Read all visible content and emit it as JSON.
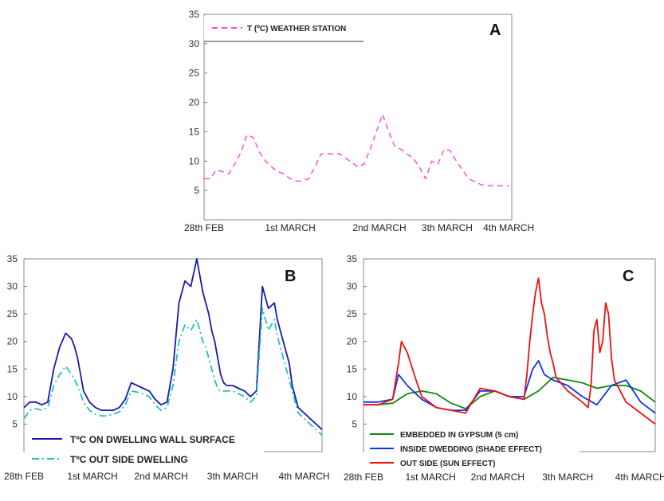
{
  "chart_data": [
    {
      "panel": "A",
      "type": "line",
      "x_ticks": [
        "28th FEB",
        "1st MARCH",
        "2nd MARCH",
        "3th MARCH",
        "4th MARCH"
      ],
      "x_range": [
        0,
        100
      ],
      "ylim": [
        0,
        35
      ],
      "y_ticks": [
        5,
        10,
        15,
        20,
        25,
        30,
        35
      ],
      "legend_placement": "top-left",
      "series": [
        {
          "name": "T (ºC) WEATHER STATION",
          "color": "#ff44dd",
          "style": "dashed",
          "x": [
            0,
            2,
            4,
            6,
            8,
            10,
            12,
            14,
            16,
            18,
            20,
            22,
            24,
            26,
            28,
            30,
            32,
            34,
            36,
            38,
            40,
            42,
            44,
            46,
            48,
            50,
            52,
            54,
            56,
            58,
            60,
            62,
            64,
            66,
            68,
            70,
            72,
            74,
            76,
            78,
            80,
            82,
            84,
            86,
            88,
            90,
            92,
            94,
            96,
            98,
            99
          ],
          "y": [
            7,
            7,
            8.5,
            8.2,
            7.8,
            9.5,
            11.5,
            14.5,
            14,
            11.5,
            10,
            9,
            8.2,
            7.8,
            7,
            6.6,
            6.6,
            7,
            9,
            11.2,
            11.3,
            11.2,
            11.3,
            10.5,
            9.8,
            9,
            9.5,
            12,
            15,
            18,
            15,
            12.5,
            12,
            11.2,
            10.5,
            9,
            7,
            10,
            9.5,
            12,
            11.8,
            10,
            8.5,
            7,
            6.5,
            6,
            5.8,
            5.8,
            5.8,
            5.8,
            5.8
          ]
        }
      ]
    },
    {
      "panel": "B",
      "type": "line",
      "x_ticks": [
        "28th FEB",
        "1st MARCH",
        "2nd MARCH",
        "3th MARCH",
        "4th MARCH"
      ],
      "x_range": [
        0,
        100
      ],
      "ylim": [
        0,
        35
      ],
      "y_ticks": [
        5,
        10,
        15,
        20,
        25,
        30,
        35
      ],
      "legend_placement": "bottom-left",
      "series": [
        {
          "name": "TºC ON DWELLING WALL SURFACE",
          "color": "#1a1aaa",
          "style": "solid",
          "x": [
            0,
            2,
            4,
            6,
            8,
            10,
            12,
            14,
            16,
            17,
            18,
            19,
            20,
            22,
            24,
            26,
            28,
            30,
            32,
            34,
            36,
            38,
            40,
            42,
            44,
            46,
            48,
            50,
            52,
            54,
            56,
            58,
            60,
            61,
            62,
            63,
            64,
            65,
            66,
            67,
            68,
            70,
            72,
            74,
            76,
            78,
            80,
            82,
            84,
            85,
            86,
            87,
            88,
            89,
            90,
            91,
            92,
            94,
            96,
            98,
            100
          ],
          "y": [
            8,
            9,
            9,
            8.5,
            9,
            15,
            19,
            21.5,
            20.5,
            19,
            17,
            14,
            11,
            9,
            8,
            7.5,
            7.5,
            7.5,
            8,
            9.5,
            12.5,
            12,
            11.5,
            11,
            9.5,
            8.5,
            9,
            15,
            27,
            31,
            30,
            35,
            29,
            27,
            25,
            22,
            20,
            17,
            14,
            12.5,
            12,
            12,
            11.5,
            11,
            10,
            11,
            30,
            26,
            27,
            24,
            22,
            20,
            18,
            16,
            12,
            10,
            8,
            7,
            6,
            5,
            4
          ]
        },
        {
          "name": "TºC OUT SIDE DWELLING",
          "color": "#20c0c0",
          "style": "dashdot",
          "x": [
            0,
            2,
            4,
            6,
            8,
            10,
            12,
            14,
            16,
            17,
            18,
            19,
            20,
            22,
            24,
            26,
            28,
            30,
            32,
            34,
            36,
            38,
            40,
            42,
            44,
            46,
            48,
            50,
            52,
            54,
            56,
            58,
            60,
            61,
            62,
            63,
            64,
            65,
            66,
            67,
            68,
            70,
            72,
            74,
            76,
            78,
            80,
            82,
            84,
            85,
            86,
            87,
            88,
            89,
            90,
            91,
            92,
            94,
            96,
            98,
            100
          ],
          "y": [
            6,
            7.5,
            7.8,
            7.5,
            8,
            12,
            14,
            15.5,
            14,
            13,
            12,
            10.5,
            9,
            7.5,
            6.8,
            6.5,
            6.5,
            6.8,
            7.2,
            8.5,
            11,
            10.8,
            10.5,
            10,
            8.5,
            7.5,
            8,
            12,
            20,
            23,
            22,
            24,
            20,
            19,
            17,
            15,
            13,
            11.5,
            11,
            11,
            11,
            11,
            10.5,
            10,
            9,
            10,
            26,
            22,
            24,
            21,
            19,
            17,
            15,
            13,
            11,
            9,
            7,
            6,
            5,
            4,
            3
          ]
        }
      ]
    },
    {
      "panel": "C",
      "type": "line",
      "x_ticks": [
        "28th FEB",
        "1st MARCH",
        "2nd MARCH",
        "3th MARCH",
        "4th MARCH"
      ],
      "x_range": [
        0,
        100
      ],
      "ylim": [
        0,
        35
      ],
      "y_ticks": [
        5,
        10,
        15,
        20,
        25,
        30,
        35
      ],
      "legend_placement": "bottom-left",
      "series": [
        {
          "name": "EMBEDDED IN GYPSUM (5 cm)",
          "color": "#118811",
          "style": "solid",
          "x": [
            0,
            5,
            10,
            15,
            20,
            25,
            30,
            35,
            40,
            45,
            50,
            55,
            60,
            65,
            70,
            75,
            80,
            85,
            90,
            95,
            100
          ],
          "y": [
            8.5,
            8.5,
            8.8,
            10.5,
            11,
            10.5,
            8.8,
            7.8,
            10,
            11,
            10,
            9.5,
            11,
            13.5,
            13,
            12.5,
            11.5,
            12,
            12,
            11,
            9
          ]
        },
        {
          "name": "INSIDE DWEDDING (SHADE EFFECT)",
          "color": "#1133ee",
          "style": "solid",
          "x": [
            0,
            5,
            10,
            12,
            15,
            20,
            25,
            30,
            35,
            40,
            45,
            50,
            55,
            58,
            60,
            62,
            65,
            70,
            75,
            80,
            85,
            90,
            95,
            100
          ],
          "y": [
            9,
            9,
            9.5,
            14,
            12,
            9.5,
            8,
            7.5,
            7.5,
            11,
            11,
            10,
            10,
            15,
            16.5,
            14,
            13,
            12,
            10,
            8.5,
            12,
            13,
            9,
            7
          ]
        },
        {
          "name": "OUT SIDE (SUN EFFECT)",
          "color": "#ee1111",
          "style": "solid",
          "x": [
            0,
            5,
            10,
            12,
            13,
            15,
            18,
            20,
            25,
            30,
            35,
            40,
            45,
            50,
            55,
            56,
            57,
            58,
            59,
            60,
            61,
            62,
            63,
            64,
            65,
            66,
            70,
            75,
            77,
            78,
            79,
            80,
            81,
            82,
            83,
            84,
            85,
            86,
            88,
            90,
            95,
            100
          ],
          "y": [
            8.5,
            8.5,
            9.5,
            16,
            20,
            18,
            13,
            10,
            8,
            7.5,
            7,
            11.5,
            11,
            10,
            9.5,
            14,
            20,
            25,
            29,
            31.5,
            27,
            25,
            21,
            18,
            16,
            13.5,
            11,
            9,
            8,
            12,
            22,
            24,
            18,
            20,
            27,
            25,
            17,
            13,
            11,
            9,
            7,
            5
          ]
        }
      ]
    }
  ],
  "panels": {
    "A": {
      "letter": "A"
    },
    "B": {
      "letter": "B"
    },
    "C": {
      "letter": "C"
    }
  },
  "grid": false
}
